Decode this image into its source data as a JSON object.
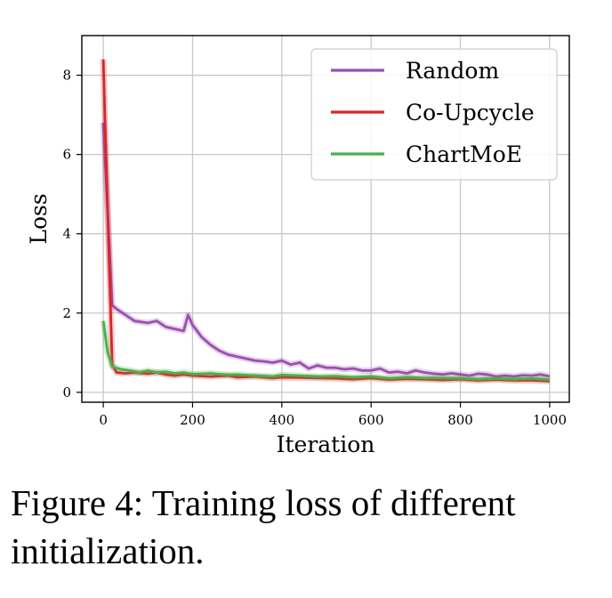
{
  "chart_data": {
    "type": "line",
    "title": "",
    "xlabel": "Iteration",
    "ylabel": "Loss",
    "xlim": [
      -48,
      1044
    ],
    "ylim": [
      -0.25,
      9.0
    ],
    "xticks": [
      0,
      200,
      400,
      600,
      800,
      1000
    ],
    "yticks": [
      0,
      2,
      4,
      6,
      8
    ],
    "grid": true,
    "legend_position": "top-right",
    "series": [
      {
        "name": "Random",
        "color": "#9b4fb0",
        "x": [
          0,
          10,
          20,
          30,
          50,
          70,
          100,
          120,
          140,
          160,
          180,
          190,
          200,
          220,
          240,
          260,
          280,
          300,
          320,
          340,
          360,
          380,
          400,
          420,
          440,
          460,
          480,
          500,
          520,
          540,
          560,
          580,
          600,
          620,
          640,
          660,
          680,
          700,
          720,
          740,
          760,
          780,
          800,
          820,
          840,
          860,
          880,
          900,
          920,
          940,
          960,
          980,
          1000
        ],
        "values": [
          6.8,
          4.5,
          2.2,
          2.1,
          1.95,
          1.8,
          1.75,
          1.8,
          1.65,
          1.6,
          1.55,
          1.95,
          1.7,
          1.4,
          1.2,
          1.05,
          0.95,
          0.9,
          0.85,
          0.8,
          0.78,
          0.75,
          0.8,
          0.7,
          0.75,
          0.6,
          0.68,
          0.62,
          0.62,
          0.58,
          0.6,
          0.55,
          0.55,
          0.6,
          0.5,
          0.52,
          0.48,
          0.55,
          0.5,
          0.47,
          0.45,
          0.48,
          0.45,
          0.42,
          0.47,
          0.45,
          0.4,
          0.42,
          0.4,
          0.43,
          0.42,
          0.45,
          0.4
        ]
      },
      {
        "name": "Co-Upcycle",
        "color": "#d62728",
        "x": [
          0,
          20,
          30,
          50,
          70,
          100,
          120,
          140,
          160,
          180,
          200,
          240,
          280,
          300,
          340,
          380,
          400,
          440,
          480,
          520,
          560,
          600,
          640,
          680,
          720,
          760,
          800,
          840,
          880,
          920,
          960,
          1000
        ],
        "values": [
          8.4,
          0.7,
          0.5,
          0.48,
          0.5,
          0.47,
          0.5,
          0.45,
          0.42,
          0.45,
          0.42,
          0.4,
          0.42,
          0.38,
          0.4,
          0.36,
          0.38,
          0.37,
          0.36,
          0.35,
          0.33,
          0.36,
          0.32,
          0.34,
          0.33,
          0.31,
          0.33,
          0.3,
          0.32,
          0.3,
          0.3,
          0.28
        ]
      },
      {
        "name": "ChartMoE",
        "color": "#4daf4a",
        "x": [
          0,
          10,
          20,
          40,
          60,
          80,
          100,
          120,
          140,
          160,
          180,
          200,
          240,
          280,
          300,
          340,
          380,
          400,
          440,
          480,
          520,
          560,
          600,
          640,
          680,
          720,
          760,
          800,
          840,
          880,
          920,
          960,
          1000
        ],
        "values": [
          1.8,
          1.0,
          0.65,
          0.58,
          0.55,
          0.5,
          0.55,
          0.5,
          0.52,
          0.48,
          0.5,
          0.46,
          0.48,
          0.44,
          0.45,
          0.42,
          0.4,
          0.44,
          0.42,
          0.4,
          0.41,
          0.38,
          0.4,
          0.35,
          0.38,
          0.36,
          0.36,
          0.35,
          0.33,
          0.35,
          0.33,
          0.35,
          0.32
        ]
      }
    ]
  },
  "caption": "Figure 4: Training loss of different initialization."
}
